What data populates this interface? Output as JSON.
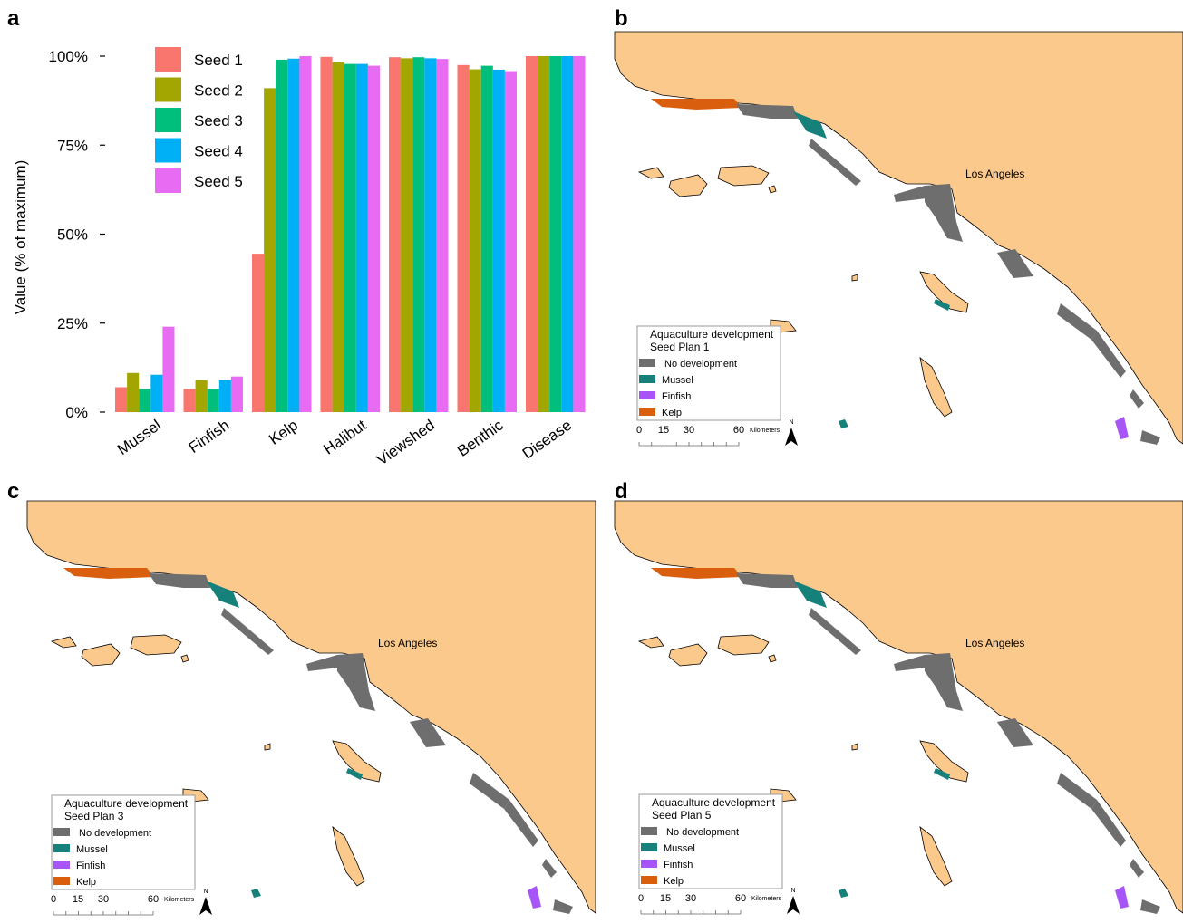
{
  "panels": [
    "a",
    "b",
    "c",
    "d"
  ],
  "chart_data": {
    "type": "bar",
    "title": "",
    "xlabel": "",
    "ylabel": "Value (% of maximum)",
    "ylim": [
      0,
      100
    ],
    "yticks": [
      "0%",
      "25%",
      "50%",
      "75%",
      "100%"
    ],
    "legend_position": "top-left",
    "categories": [
      "Mussel",
      "Finfish",
      "Kelp",
      "Halibut",
      "Viewshed",
      "Benthic",
      "Disease"
    ],
    "series": [
      {
        "name": "Seed 1",
        "color": "#f8766d",
        "values": [
          7,
          6.5,
          44.5,
          99.8,
          99.7,
          97.5,
          100
        ]
      },
      {
        "name": "Seed 2",
        "color": "#a3a500",
        "values": [
          11,
          9,
          91,
          98.3,
          99.4,
          96.3,
          100
        ]
      },
      {
        "name": "Seed 3",
        "color": "#00bf7d",
        "values": [
          6.5,
          6.5,
          99,
          97.8,
          99.7,
          97.3,
          100
        ]
      },
      {
        "name": "Seed 4",
        "color": "#00b0f6",
        "values": [
          10.5,
          9,
          99.3,
          97.8,
          99.4,
          96.2,
          100
        ]
      },
      {
        "name": "Seed 5",
        "color": "#e76bf3",
        "values": [
          24,
          10,
          100,
          97.3,
          99.2,
          95.8,
          100
        ]
      }
    ]
  },
  "maps": [
    {
      "panel": "b",
      "legend_title": "Aquaculture development",
      "plan": "Seed Plan 1"
    },
    {
      "panel": "c",
      "legend_title": "Aquaculture development",
      "plan": "Seed Plan 3"
    },
    {
      "panel": "d",
      "legend_title": "Aquaculture development",
      "plan": "Seed Plan 5"
    }
  ],
  "map_common": {
    "city": "Los Angeles",
    "legend_items": [
      {
        "label": "No development",
        "color": "#6e6e6e"
      },
      {
        "label": "Mussel",
        "color": "#16807a"
      },
      {
        "label": "Finfish",
        "color": "#a855f7"
      },
      {
        "label": "Kelp",
        "color": "#d95f0e"
      }
    ],
    "scale_ticks": [
      "0",
      "15",
      "30",
      "60"
    ],
    "scale_unit": "Kilometers",
    "north_label": "N",
    "land_color": "#fcc98d"
  }
}
